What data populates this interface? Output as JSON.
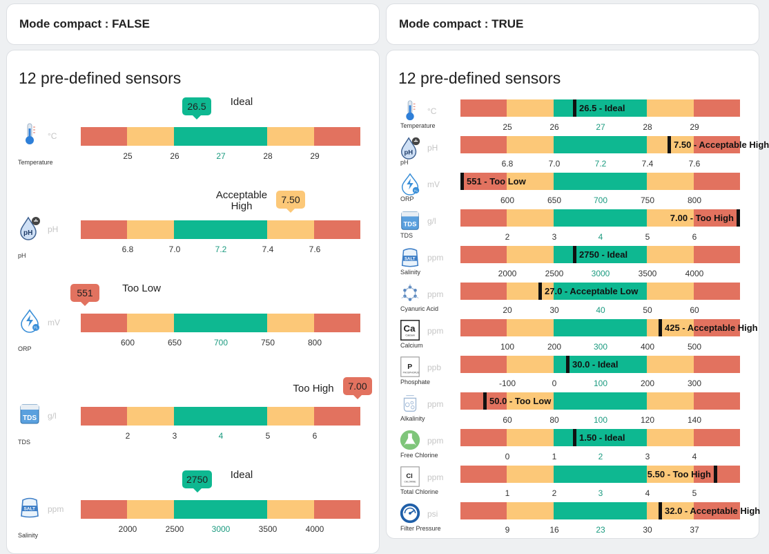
{
  "headers": {
    "left": "Mode compact : FALSE",
    "right": "Mode compact : TRUE"
  },
  "left_panel": {
    "title": "12 pre-defined sensors",
    "sensors": [
      {
        "name": "Temperature",
        "unit": "°C",
        "icon": "thermometer-icon",
        "value": "26.5",
        "status": "Ideal",
        "level": "green",
        "ticks": [
          "25",
          "26",
          "27",
          "28",
          "29"
        ]
      },
      {
        "name": "pH",
        "unit": "pH",
        "icon": "ph-drop-icon",
        "value": "7.50",
        "status": "Acceptable High",
        "level": "yellow",
        "ticks": [
          "6.8",
          "7.0",
          "7.2",
          "7.4",
          "7.6"
        ]
      },
      {
        "name": "ORP",
        "unit": "mV",
        "icon": "orp-icon",
        "value": "551",
        "status": "Too Low",
        "level": "red",
        "ticks": [
          "600",
          "650",
          "700",
          "750",
          "800"
        ]
      },
      {
        "name": "TDS",
        "unit": "g/l",
        "icon": "tds-icon",
        "value": "7.00",
        "status": "Too High",
        "level": "red",
        "ticks": [
          "2",
          "3",
          "4",
          "5",
          "6"
        ]
      },
      {
        "name": "Salinity",
        "unit": "ppm",
        "icon": "salt-bag-icon",
        "value": "2750",
        "status": "Ideal",
        "level": "green",
        "ticks": [
          "2000",
          "2500",
          "3000",
          "3500",
          "4000"
        ]
      }
    ]
  },
  "right_panel": {
    "title": "12 pre-defined sensors",
    "sensors": [
      {
        "name": "Temperature",
        "unit": "°C",
        "icon": "thermometer-icon",
        "label": "26.5 - Ideal",
        "position": 0.408,
        "ticks": [
          "25",
          "26",
          "27",
          "28",
          "29"
        ]
      },
      {
        "name": "pH",
        "unit": "pH",
        "icon": "ph-drop-icon",
        "label": "7.50 - Acceptable High",
        "position": 0.75,
        "ticks": [
          "6.8",
          "7.0",
          "7.2",
          "7.4",
          "7.6"
        ]
      },
      {
        "name": "ORP",
        "unit": "mV",
        "icon": "orp-icon",
        "label": "551 - Too Low",
        "position": 0.0,
        "ticks": [
          "600",
          "650",
          "700",
          "750",
          "800"
        ]
      },
      {
        "name": "TDS",
        "unit": "g/l",
        "icon": "tds-icon",
        "label": "7.00 - Too High",
        "position": 1.0,
        "ticks": [
          "2",
          "3",
          "4",
          "5",
          "6"
        ]
      },
      {
        "name": "Salinity",
        "unit": "ppm",
        "icon": "salt-bag-icon",
        "label": "2750 - Ideal",
        "position": 0.408,
        "ticks": [
          "2000",
          "2500",
          "3000",
          "3500",
          "4000"
        ]
      },
      {
        "name": "Cyanuric Acid",
        "unit": "ppm",
        "icon": "molecule-icon",
        "label": "27.0 - Acceptable Low",
        "position": 0.283,
        "ticks": [
          "20",
          "30",
          "40",
          "50",
          "60"
        ]
      },
      {
        "name": "Calcium",
        "unit": "ppm",
        "icon": "calcium-element-icon",
        "label": "425 - Acceptable High",
        "position": 0.717,
        "ticks": [
          "100",
          "200",
          "300",
          "400",
          "500"
        ]
      },
      {
        "name": "Phosphate",
        "unit": "ppb",
        "icon": "phosphorus-element-icon",
        "label": "30.0 - Ideal",
        "position": 0.383,
        "ticks": [
          "-100",
          "0",
          "100",
          "200",
          "300"
        ]
      },
      {
        "name": "Alkalinity",
        "unit": "ppm",
        "icon": "alkalinity-icon",
        "label": "50.0 - Too Low",
        "position": 0.083,
        "ticks": [
          "60",
          "80",
          "100",
          "120",
          "140"
        ]
      },
      {
        "name": "Free Chlorine",
        "unit": "ppm",
        "icon": "flask-icon",
        "label": "1.50 - Ideal",
        "position": 0.408,
        "ticks": [
          "0",
          "1",
          "2",
          "3",
          "4"
        ]
      },
      {
        "name": "Total Chlorine",
        "unit": "ppm",
        "icon": "chlorine-element-icon",
        "label": "5.50 - Too High",
        "position": 0.917,
        "ticks": [
          "1",
          "2",
          "3",
          "4",
          "5"
        ]
      },
      {
        "name": "Filter Pressure",
        "unit": "psi",
        "icon": "gauge-icon",
        "label": "32.0 - Acceptable High",
        "position": 0.717,
        "ticks": [
          "9",
          "16",
          "23",
          "30",
          "37"
        ]
      }
    ]
  },
  "colors": {
    "red": "#e2725f",
    "yellow": "#fcc878",
    "green": "#0eb891"
  }
}
